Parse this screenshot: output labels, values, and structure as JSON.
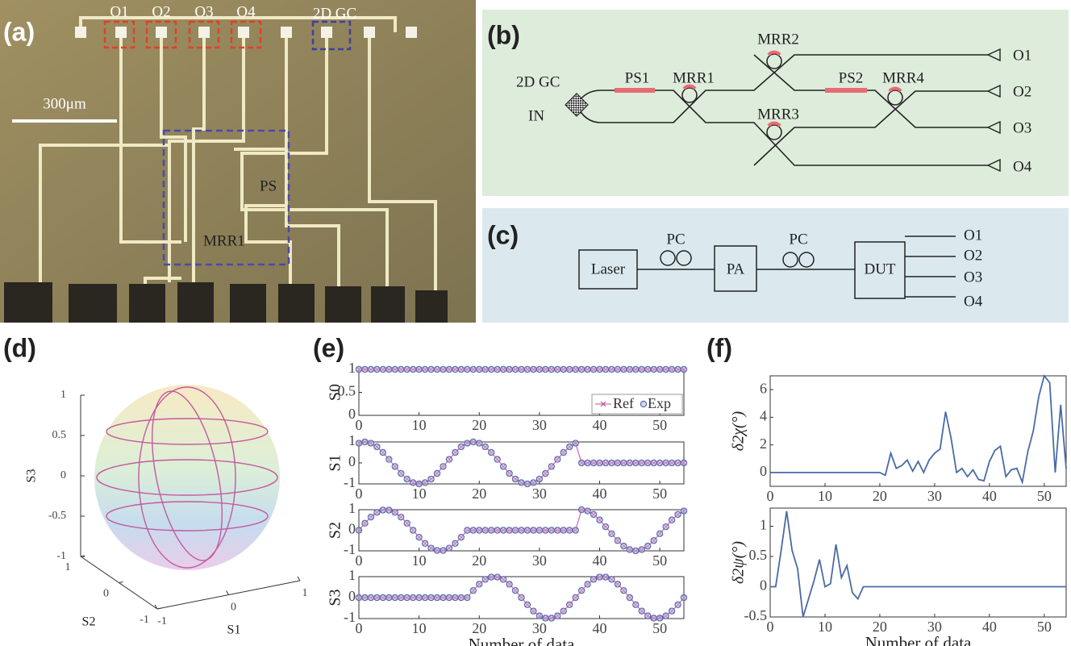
{
  "panels": {
    "labels": [
      "(a)",
      "(b)",
      "(c)",
      "(d)",
      "(e)",
      "(f)"
    ],
    "a": {
      "outputs": [
        "O1",
        "O2",
        "O3",
        "O4"
      ],
      "gc": "2D GC",
      "scale": "300μm",
      "ps": "PS",
      "mrr": "MRR1"
    },
    "b": {
      "gc": "2D GC",
      "input": "IN",
      "ps1": "PS1",
      "mrr1": "MRR1",
      "mrr2": "MRR2",
      "mrr3": "MRR3",
      "ps2": "PS2",
      "mrr4": "MRR4",
      "outputs": [
        "O1",
        "O2",
        "O3",
        "O4"
      ]
    },
    "c": {
      "laser": "Laser",
      "pc1": "PC",
      "pa": "PA",
      "pc2": "PC",
      "dut": "DUT",
      "outputs": [
        "O1",
        "O2",
        "O3",
        "O4"
      ]
    }
  },
  "chart_data": [
    {
      "type": "sphere3d",
      "xlabel": "S1",
      "ylabel": "S2",
      "zlabel": "S3",
      "xlim": [
        -1,
        1
      ],
      "ylim": [
        -1,
        1
      ],
      "zlim": [
        -1,
        1
      ],
      "xticks": [
        -1,
        0,
        1
      ],
      "yticks": [
        -1,
        0,
        1
      ],
      "zticks": [
        -1,
        -0.5,
        0,
        0.5,
        1
      ]
    },
    {
      "type": "line",
      "ylabel": "S0",
      "x": [
        0,
        1,
        2,
        3,
        4,
        5,
        6,
        7,
        8,
        9,
        10,
        11,
        12,
        13,
        14,
        15,
        16,
        17,
        18,
        19,
        20,
        21,
        22,
        23,
        24,
        25,
        26,
        27,
        28,
        29,
        30,
        31,
        32,
        33,
        34,
        35,
        36,
        37,
        38,
        39,
        40,
        41,
        42,
        43,
        44,
        45,
        46,
        47,
        48,
        49,
        50,
        51,
        52,
        53,
        54
      ],
      "series": [
        {
          "name": "Ref",
          "color": "#c0509e",
          "marker": "x",
          "line": true,
          "values": [
            1,
            1,
            1,
            1,
            1,
            1,
            1,
            1,
            1,
            1,
            1,
            1,
            1,
            1,
            1,
            1,
            1,
            1,
            1,
            1,
            1,
            1,
            1,
            1,
            1,
            1,
            1,
            1,
            1,
            1,
            1,
            1,
            1,
            1,
            1,
            1,
            1,
            1,
            1,
            1,
            1,
            1,
            1,
            1,
            1,
            1,
            1,
            1,
            1,
            1,
            1,
            1,
            1,
            1,
            1
          ]
        },
        {
          "name": "Exp",
          "color": "#5a6fae",
          "marker": "o",
          "line": false,
          "values": [
            1,
            1,
            1,
            1,
            1,
            1,
            1,
            1,
            1,
            1,
            1,
            1,
            1,
            1,
            1,
            1,
            1,
            1,
            1,
            1,
            1,
            1,
            1,
            1,
            1,
            1,
            1,
            1,
            1,
            1,
            1,
            1,
            1,
            1,
            1,
            1,
            1,
            1,
            1,
            1,
            1,
            1,
            1,
            1,
            1,
            1,
            1,
            1,
            1,
            1,
            1,
            1,
            1,
            1,
            1
          ]
        }
      ],
      "xlim": [
        0,
        54
      ],
      "ylim": [
        0,
        1
      ],
      "xticks": [
        0,
        10,
        20,
        30,
        40,
        50
      ],
      "yticks": [
        0,
        0.5,
        1
      ],
      "legend": "lower right"
    },
    {
      "type": "line",
      "ylabel": "S1",
      "x": [
        0,
        1,
        2,
        3,
        4,
        5,
        6,
        7,
        8,
        9,
        10,
        11,
        12,
        13,
        14,
        15,
        16,
        17,
        18,
        19,
        20,
        21,
        22,
        23,
        24,
        25,
        26,
        27,
        28,
        29,
        30,
        31,
        32,
        33,
        34,
        35,
        36,
        37,
        38,
        39,
        40,
        41,
        42,
        43,
        44,
        45,
        46,
        47,
        48,
        49,
        50,
        51,
        52,
        53,
        54
      ],
      "series": [
        {
          "name": "Ref",
          "color": "#c0509e",
          "marker": "x",
          "line": true,
          "values": [
            0.94,
            1,
            0.94,
            0.77,
            0.5,
            0.17,
            -0.17,
            -0.5,
            -0.77,
            -0.94,
            -1,
            -0.94,
            -0.77,
            -0.5,
            -0.17,
            0.17,
            0.5,
            0.77,
            0.94,
            1,
            0.94,
            0.77,
            0.5,
            0.17,
            -0.17,
            -0.5,
            -0.77,
            -0.94,
            -1,
            -0.94,
            -0.77,
            -0.5,
            -0.17,
            0.17,
            0.5,
            0.77,
            0.94,
            0,
            0,
            0,
            0,
            0,
            0,
            0,
            0,
            0,
            0,
            0,
            0,
            0,
            0,
            0,
            0,
            0,
            0
          ]
        },
        {
          "name": "Exp",
          "color": "#5a6fae",
          "marker": "o",
          "line": false,
          "values": [
            0.94,
            1,
            0.94,
            0.77,
            0.5,
            0.17,
            -0.17,
            -0.5,
            -0.77,
            -0.94,
            -1,
            -0.94,
            -0.77,
            -0.5,
            -0.17,
            0.17,
            0.5,
            0.77,
            0.94,
            1,
            0.94,
            0.77,
            0.5,
            0.17,
            -0.17,
            -0.5,
            -0.77,
            -0.94,
            -1,
            -0.94,
            -0.77,
            -0.5,
            -0.17,
            0.17,
            0.5,
            0.77,
            0.94,
            0,
            0,
            0,
            0,
            0,
            0,
            0,
            0,
            0,
            0,
            0,
            0,
            0,
            0,
            0,
            0,
            0,
            0
          ]
        }
      ],
      "xlim": [
        0,
        54
      ],
      "ylim": [
        -1,
        1
      ],
      "xticks": [
        0,
        10,
        20,
        30,
        40,
        50
      ],
      "yticks": [
        -1,
        0,
        1
      ]
    },
    {
      "type": "line",
      "ylabel": "S2",
      "x": [
        0,
        1,
        2,
        3,
        4,
        5,
        6,
        7,
        8,
        9,
        10,
        11,
        12,
        13,
        14,
        15,
        16,
        17,
        18,
        19,
        20,
        21,
        22,
        23,
        24,
        25,
        26,
        27,
        28,
        29,
        30,
        31,
        32,
        33,
        34,
        35,
        36,
        37,
        38,
        39,
        40,
        41,
        42,
        43,
        44,
        45,
        46,
        47,
        48,
        49,
        50,
        51,
        52,
        53,
        54
      ],
      "series": [
        {
          "name": "Ref",
          "color": "#c0509e",
          "marker": "x",
          "line": true,
          "values": [
            0,
            0.34,
            0.64,
            0.87,
            0.98,
            0.98,
            0.87,
            0.64,
            0.34,
            0,
            -0.34,
            -0.64,
            -0.87,
            -0.98,
            -0.98,
            -0.87,
            -0.64,
            -0.34,
            0,
            0,
            0,
            0,
            0,
            0,
            0,
            0,
            0,
            0,
            0,
            0,
            0,
            0,
            0,
            0,
            0,
            0,
            0,
            1,
            0.94,
            0.77,
            0.5,
            0.17,
            -0.17,
            -0.5,
            -0.77,
            -0.94,
            -1,
            -0.94,
            -0.77,
            -0.5,
            -0.17,
            0.17,
            0.5,
            0.77,
            0.94
          ]
        },
        {
          "name": "Exp",
          "color": "#5a6fae",
          "marker": "o",
          "line": false,
          "values": [
            0,
            0.34,
            0.64,
            0.87,
            0.98,
            0.98,
            0.87,
            0.64,
            0.34,
            0,
            -0.34,
            -0.64,
            -0.87,
            -0.98,
            -0.98,
            -0.87,
            -0.64,
            -0.34,
            0,
            0,
            0,
            0,
            0,
            0,
            0,
            0,
            0,
            0,
            0,
            0,
            0,
            0,
            0,
            0,
            0,
            0,
            0,
            1,
            0.94,
            0.77,
            0.5,
            0.17,
            -0.17,
            -0.5,
            -0.77,
            -0.94,
            -1,
            -0.94,
            -0.77,
            -0.5,
            -0.17,
            0.17,
            0.5,
            0.77,
            0.94
          ]
        }
      ],
      "xlim": [
        0,
        54
      ],
      "ylim": [
        -1,
        1
      ],
      "xticks": [
        0,
        10,
        20,
        30,
        40,
        50
      ],
      "yticks": [
        -1,
        0,
        1
      ]
    },
    {
      "type": "line",
      "ylabel": "S3",
      "xlabel": "Number of data",
      "x": [
        0,
        1,
        2,
        3,
        4,
        5,
        6,
        7,
        8,
        9,
        10,
        11,
        12,
        13,
        14,
        15,
        16,
        17,
        18,
        19,
        20,
        21,
        22,
        23,
        24,
        25,
        26,
        27,
        28,
        29,
        30,
        31,
        32,
        33,
        34,
        35,
        36,
        37,
        38,
        39,
        40,
        41,
        42,
        43,
        44,
        45,
        46,
        47,
        48,
        49,
        50,
        51,
        52,
        53,
        54
      ],
      "series": [
        {
          "name": "Ref",
          "color": "#c0509e",
          "marker": "x",
          "line": true,
          "values": [
            0,
            0,
            0,
            0,
            0,
            0,
            0,
            0,
            0,
            0,
            0,
            0,
            0,
            0,
            0,
            0,
            0,
            0,
            0,
            0.34,
            0.64,
            0.87,
            0.98,
            0.98,
            0.87,
            0.64,
            0.34,
            0,
            -0.34,
            -0.64,
            -0.87,
            -0.98,
            -0.98,
            -0.87,
            -0.64,
            -0.34,
            0,
            0.34,
            0.64,
            0.87,
            0.98,
            0.98,
            0.87,
            0.64,
            0.34,
            0,
            -0.34,
            -0.64,
            -0.87,
            -0.98,
            -0.98,
            -0.87,
            -0.64,
            -0.34,
            0
          ]
        },
        {
          "name": "Exp",
          "color": "#5a6fae",
          "marker": "o",
          "line": false,
          "values": [
            0,
            0,
            0,
            0,
            0,
            0,
            0,
            0,
            0,
            0,
            0,
            0,
            0,
            0,
            0,
            0,
            0,
            0,
            0,
            0.34,
            0.64,
            0.87,
            0.98,
            0.98,
            0.87,
            0.64,
            0.34,
            0,
            -0.34,
            -0.64,
            -0.87,
            -0.98,
            -0.98,
            -0.87,
            -0.64,
            -0.34,
            0,
            0.34,
            0.64,
            0.87,
            0.98,
            0.98,
            0.87,
            0.64,
            0.34,
            0,
            -0.34,
            -0.64,
            -0.87,
            -0.98,
            -0.98,
            -0.87,
            -0.64,
            -0.34,
            0
          ]
        }
      ],
      "xlim": [
        0,
        54
      ],
      "ylim": [
        -1,
        1
      ],
      "xticks": [
        0,
        10,
        20,
        30,
        40,
        50
      ],
      "yticks": [
        -1,
        0,
        1
      ]
    },
    {
      "type": "line",
      "ylabel": "δ2χ(°)",
      "x": [
        0,
        1,
        2,
        3,
        4,
        5,
        6,
        7,
        8,
        9,
        10,
        11,
        12,
        13,
        14,
        15,
        16,
        17,
        18,
        19,
        20,
        21,
        22,
        23,
        24,
        25,
        26,
        27,
        28,
        29,
        30,
        31,
        32,
        33,
        34,
        35,
        36,
        37,
        38,
        39,
        40,
        41,
        42,
        43,
        44,
        45,
        46,
        47,
        48,
        49,
        50,
        51,
        52,
        53,
        54
      ],
      "series": [
        {
          "color": "#4a6aa5",
          "line": true,
          "values": [
            0,
            0,
            0,
            0,
            0,
            0,
            0,
            0,
            0,
            0,
            0,
            0,
            0,
            0,
            0,
            0,
            0,
            0,
            0,
            0,
            0,
            -0.2,
            1.4,
            0.3,
            0.5,
            0.9,
            0.1,
            0.8,
            0,
            0.9,
            1.4,
            1.7,
            4.4,
            2.5,
            0,
            0.3,
            -0.3,
            0.2,
            -0.5,
            -0.6,
            0.8,
            1.6,
            1.9,
            -0.3,
            0.2,
            0.3,
            -0.7,
            1.5,
            3,
            5.5,
            7,
            6.5,
            0,
            4.9,
            0.3
          ]
        }
      ],
      "xlim": [
        0,
        54
      ],
      "ylim": [
        -1,
        7
      ],
      "xticks": [
        0,
        10,
        20,
        30,
        40,
        50
      ],
      "yticks": [
        0,
        2,
        4,
        6
      ]
    },
    {
      "type": "line",
      "ylabel": "δ2ψ(°)",
      "xlabel": "Number of data",
      "x": [
        0,
        1,
        2,
        3,
        4,
        5,
        6,
        7,
        8,
        9,
        10,
        11,
        12,
        13,
        14,
        15,
        16,
        17,
        18,
        19,
        20,
        21,
        22,
        23,
        24,
        25,
        26,
        27,
        28,
        29,
        30,
        31,
        32,
        33,
        34,
        35,
        36,
        37,
        38,
        39,
        40,
        41,
        42,
        43,
        44,
        45,
        46,
        47,
        48,
        49,
        50,
        51,
        52,
        53,
        54
      ],
      "series": [
        {
          "color": "#4a6aa5",
          "line": true,
          "values": [
            0,
            0,
            0.6,
            1.25,
            0.6,
            0.3,
            -0.5,
            -0.2,
            0.1,
            0.45,
            0,
            0.05,
            0.7,
            0.15,
            0.35,
            -0.1,
            -0.2,
            0,
            0,
            0,
            0,
            0,
            0,
            0,
            0,
            0,
            0,
            0,
            0,
            0,
            0,
            0,
            0,
            0,
            0,
            0,
            0,
            0,
            0,
            0,
            0,
            0,
            0,
            0,
            0,
            0,
            0,
            0,
            0,
            0,
            0,
            0,
            0,
            0,
            0
          ]
        }
      ],
      "xlim": [
        0,
        54
      ],
      "ylim": [
        -0.5,
        1.3
      ],
      "xticks": [
        0,
        10,
        20,
        30,
        40,
        50
      ],
      "yticks": [
        -0.5,
        0,
        0.5,
        1
      ]
    }
  ]
}
